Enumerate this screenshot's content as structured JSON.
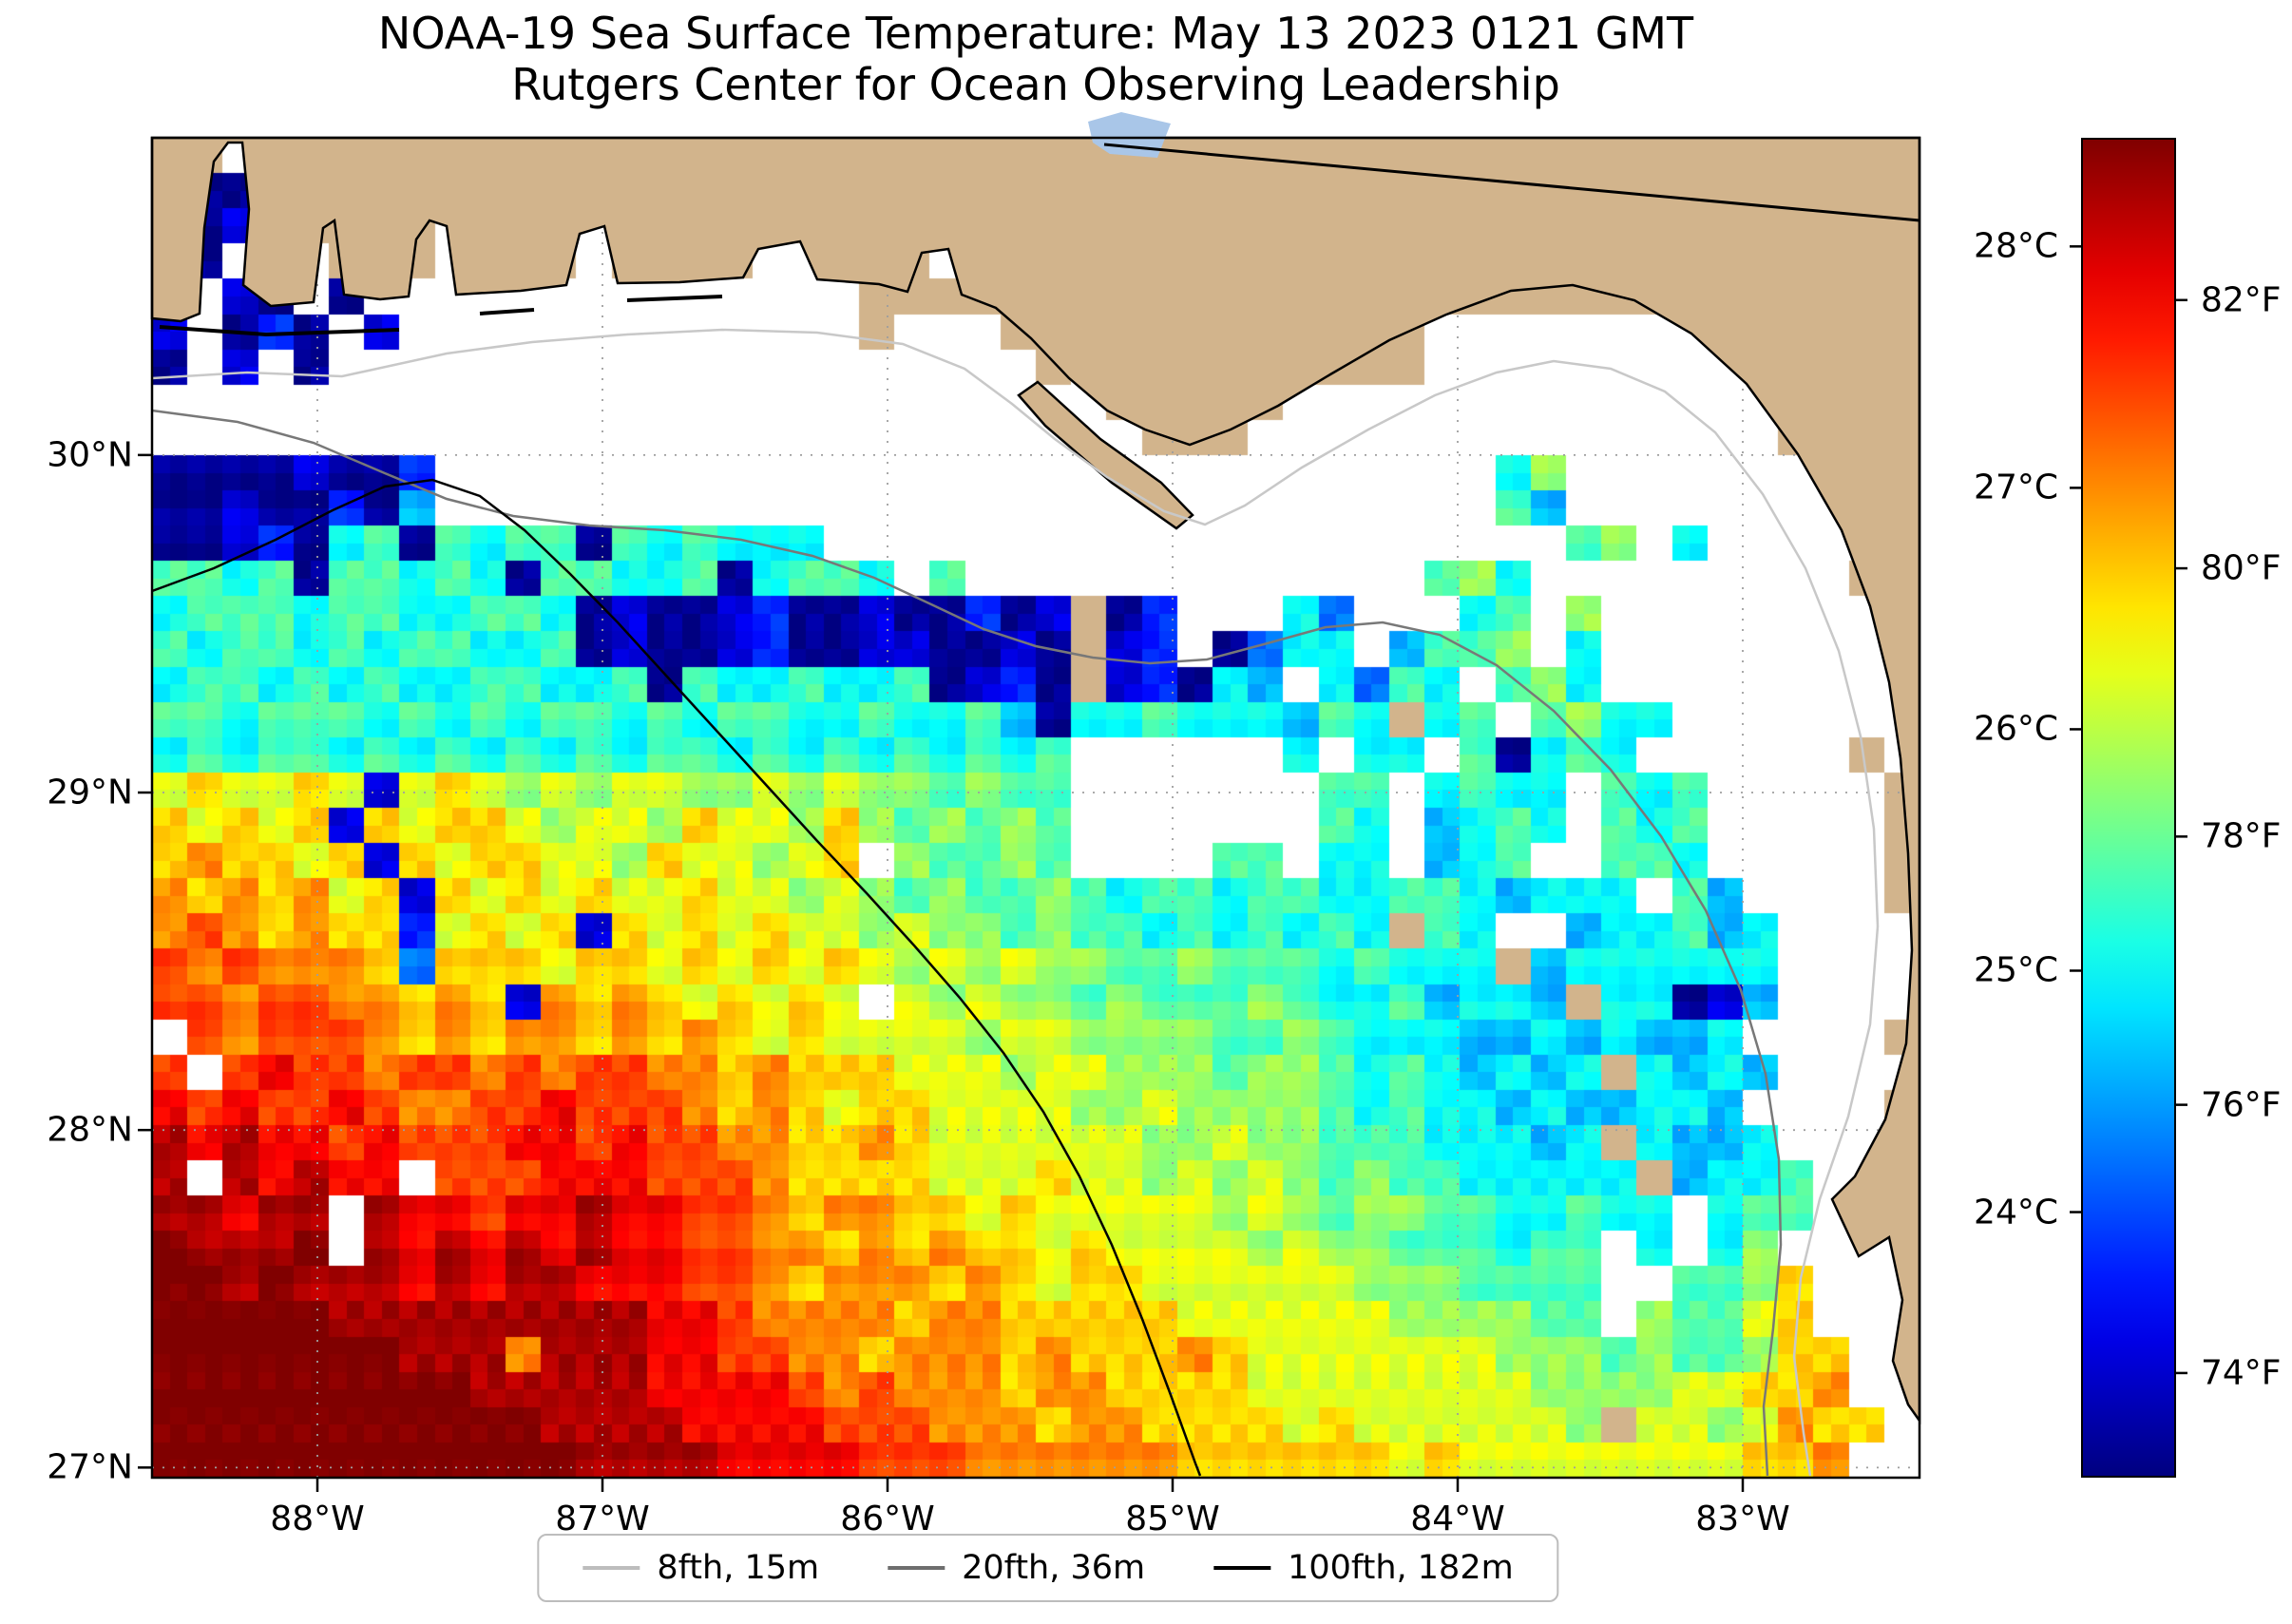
{
  "chart_data": {
    "type": "heatmap",
    "title": "NOAA-19 Sea Surface Temperature: May 13 2023 0121 GMT",
    "subtitle": "Rutgers Center for Ocean Observing Leadership",
    "x_axis": {
      "tick_values": [
        -88,
        -87,
        -86,
        -85,
        -84,
        -83
      ],
      "tick_labels": [
        "88°W",
        "87°W",
        "86°W",
        "85°W",
        "84°W",
        "83°W"
      ],
      "lon_range": [
        -88.58,
        -82.38
      ]
    },
    "y_axis": {
      "tick_values": [
        30,
        29,
        28,
        27
      ],
      "tick_labels": [
        "30°N",
        "29°N",
        "28°N",
        "27°N"
      ],
      "lat_range": [
        26.97,
        30.94
      ]
    },
    "colorbar": {
      "colormap": "jet",
      "range_c": [
        22.9,
        28.45
      ],
      "c_ticks": [
        {
          "value": 28,
          "label": "28°C"
        },
        {
          "value": 27,
          "label": "27°C"
        },
        {
          "value": 26,
          "label": "26°C"
        },
        {
          "value": 25,
          "label": "25°C"
        },
        {
          "value": 24,
          "label": "24°C"
        }
      ],
      "f_ticks": [
        {
          "value": 82,
          "label": "82°F"
        },
        {
          "value": 80,
          "label": "80°F"
        },
        {
          "value": 78,
          "label": "78°F"
        },
        {
          "value": 76,
          "label": "76°F"
        },
        {
          "value": 74,
          "label": "74°F"
        }
      ]
    },
    "legend": [
      {
        "label": "8fth, 15m",
        "color": "#bdbdbd"
      },
      {
        "label": "20fth, 36m",
        "color": "#6e6e6e"
      },
      {
        "label": "100fth, 182m",
        "color": "#000000"
      }
    ],
    "grid": {
      "cols": 50,
      "rows": 38,
      "units": "°C",
      "palette": {
        "0": 23.0,
        "1": 23.4,
        "2": 23.8,
        "3": 24.2,
        "4": 24.6,
        "5": 25.0,
        "6": 25.4,
        "7": 25.8,
        "8": 26.2,
        "9": 26.6,
        "a": 27.0,
        "b": 27.4,
        "c": 27.8,
        "d": 28.2,
        "e": 28.5
      },
      "colors": {
        "no_data": "#ffffff",
        "land": "#d2b48c",
        "lake": "#a9c6e8",
        "coastline": "#000000",
        "gridline": "#9e9e9e"
      },
      "rows_data": [
        "LL..LLLLLLLLLLLLLLLLLLLLLLLLLLLLLLLLLLLLLLLLLLLLLL",
        ".00.LLLLLLLLLLLLLLLLLLLLLLLLLLLLLLLLLLLLLLLLLLLLLL",
        ".01.LLLL.LLL.LLLLLLLLLLLLLLLLLLLLLLLLLLLLLLLLLLLLL",
        "10.1.LLL.LLL.LLLL..LLL.LLLLLLLLLLLLLLLLLLLLLLLLLLL",
        "0.10.0..............фLLLLLLLLLLLLLLLLLLLLLLLLLLLLL",
        "1.020.1.............ф...LLLLLLLLLLLL........LLLLLL",
        "0.1.0....................ф.LLLLLLLLL..........LLLLL",
        "...........................LLLLL..............LLLL",
        "............................LLL...............LLLL",
        "00001002..............................57...........LLL",
        "00100204..............................64...........LLL",
        "0012056065660656555.....................67.5........LL",
        "665606656506655605665.6.............675.........LL",
        "56665665566501001200100201 02...53...56.7........LL",
        "65665656655601001200110010 12.0355.4667.5.........L",
        "56656565566556065565560120 12054.5365.675.........L",
        "66566656565665656655655640556555465 56.6755.......L",
        "56566565656565665656565656......5.55.60565......L",
        "89889818987878877878776766.......66.5655.656.....L",
        "98989198998788798879767676.......65.4565.656.....L",
        "9a998919899887988789.76676....66.55.456..665.....L",
        "a9a9a8919898988988787676676566566556654555.64....L",
        "aba9a992898919898988787767665656565 65..455645....L",
        "babaaa93999899898989878787766766656555 4555555....L",
        "bbabbaa9a91a9a989898.8787767666765564554 55014....L",
        ".babbba9a9aa9a9a98988887887777667655544545445....L",
        "b.bcbbabbababbaa9a99988878877767765654545 5454....L",
        "cbcbbcbaabbcbbba9a989988887787777656554544554....L",
        "dcdccbcbbbccbcbbaa99a98888887787766655545 5445....L",
        "d.dcdcc.bbbcccbbba999988898878787676655555 4556...L",
        "ddcdd.dccbccdccbba9aa9989888887876776655655.566...",
        "eddde.dcdcdcdccbbaa9a9a998988887877666566.5.57....",
        "eededddcdcddcccbba9aaa9a98998888887776666..6679...",
        "eeeeedddddddddccbaaaa9aa99999888888777766.76689...",
        "eeeeeeedddadddccbbaa9aaa9a999a988888887776766799...",
        "eeeeeeeeedddddccccbabaaa9aa99998888888877778899a..",
        "eeeeeeeeeeeddddccccbbbaaa9aa9999898888887 8878a99..",
        "eeeeeeeeeeeeddddccccbbbaaaaaa999999898888888899a..",
        "eeeeeeeeeeeeddddccccbbbaaaaaa99999989888 8888899a.."
      ]
    }
  }
}
